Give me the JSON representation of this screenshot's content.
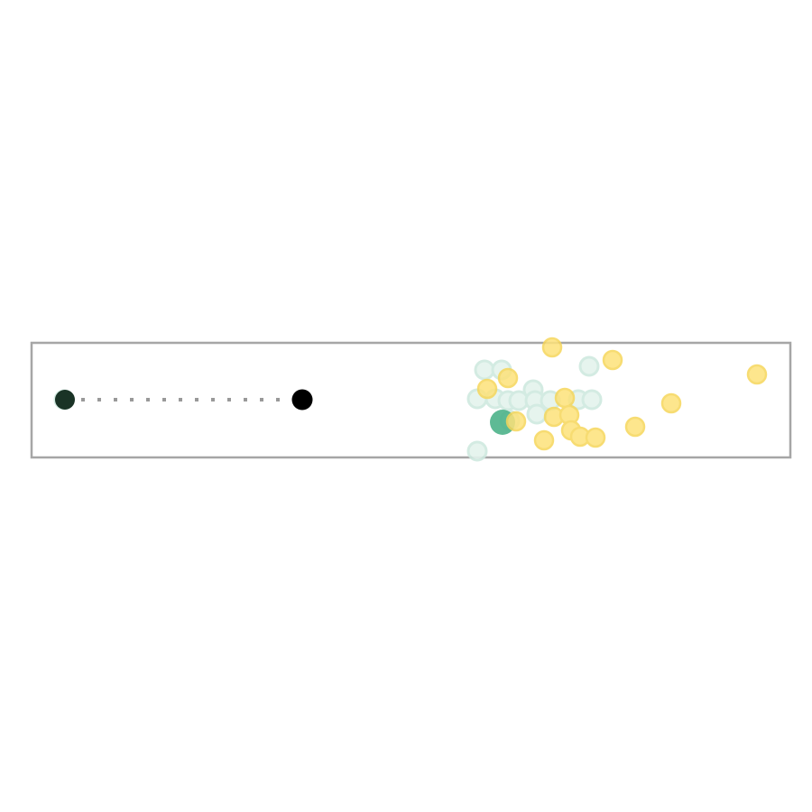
{
  "scene": {
    "type": "physics-game-board",
    "colors": {
      "background": "#ffffff",
      "border": "#a6a6a6",
      "aim_line": "#999999",
      "ball_black": "#000000",
      "ball_dark_green": "#1a3326",
      "ball_green": "#4cb38a",
      "ghost_green": "#cfe9df",
      "ball_yellow": "#fde27a",
      "ball_yellow_stroke": "#f6d65a"
    }
  },
  "elements": {
    "start_ball": {
      "kind": "player",
      "color": "#1a3326"
    },
    "target_ball": {
      "kind": "target",
      "color": "#000000"
    },
    "green_ball": {
      "kind": "marker",
      "color": "#4cb38a"
    },
    "aim_line": {
      "style": "dotted",
      "color": "#999999"
    }
  },
  "counts": {
    "yellow_balls": 18,
    "ghost_balls": 16
  }
}
